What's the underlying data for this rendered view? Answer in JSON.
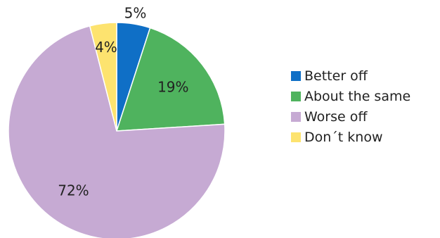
{
  "chart_data": {
    "type": "pie",
    "categories": [
      "Better off",
      "About the same",
      "Worse off",
      "Don´t know"
    ],
    "values": [
      5,
      19,
      72,
      4
    ],
    "value_labels": [
      "5%",
      "19%",
      "72%",
      "4%"
    ],
    "colors": [
      "#0f6fc6",
      "#4fb35e",
      "#c6aad3",
      "#fde36f"
    ],
    "start_direction": "top",
    "order": "clockwise",
    "legend_position": "right"
  }
}
